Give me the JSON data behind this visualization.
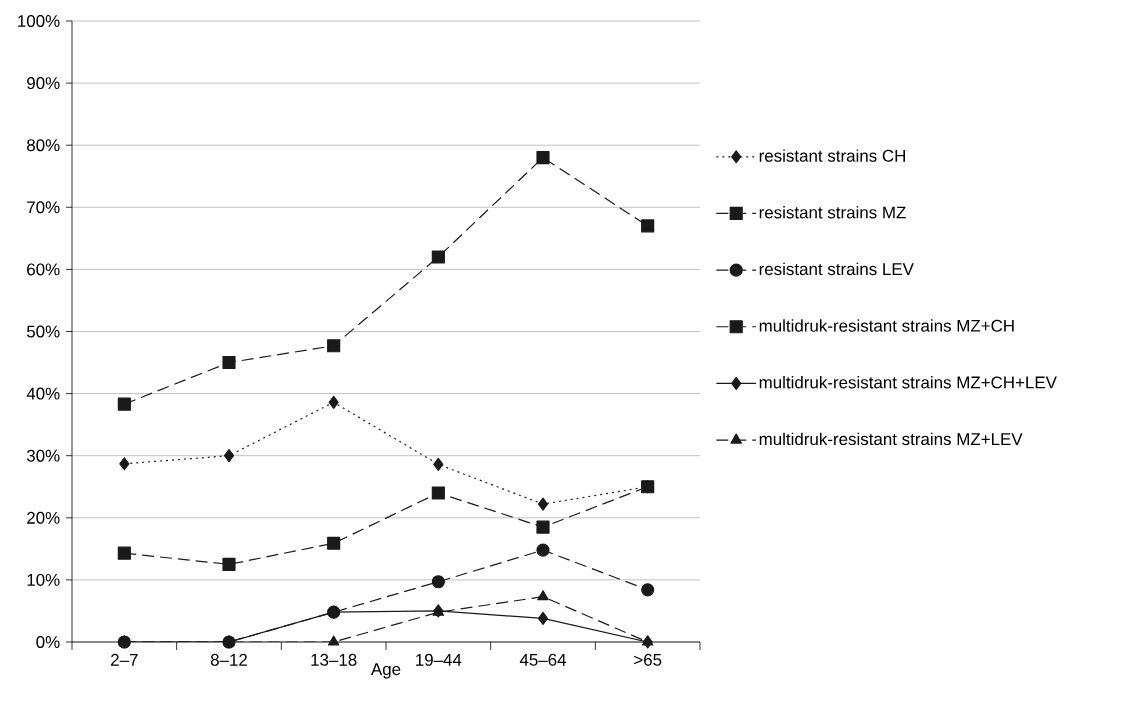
{
  "chart_data": {
    "type": "line",
    "xlabel": "Age",
    "categories": [
      "2–7",
      "8–12",
      "13–18",
      "19–44",
      "45–64",
      ">65"
    ],
    "series": [
      {
        "name": "resistant strains CH",
        "color": "#1a1a1a",
        "marker": "diamond",
        "line_style": "dotted",
        "values": [
          28.7,
          30,
          38.6,
          28.6,
          22.2,
          25
        ]
      },
      {
        "name": "resistant strains MZ",
        "color": "#1a1a1a",
        "marker": "square",
        "line_style": "dashed",
        "values": [
          38.3,
          45,
          47.7,
          62,
          78,
          67
        ]
      },
      {
        "name": "resistant strains LEV",
        "color": "#1a1a1a",
        "marker": "circle",
        "line_style": "dashed",
        "values": [
          0,
          0,
          4.8,
          9.7,
          14.8,
          8.4
        ]
      },
      {
        "name": "multidruk-resistant strains MZ+CH",
        "color": "#1a1a1a",
        "marker": "square",
        "line_style": "dashed",
        "values": [
          14.3,
          12.5,
          15.9,
          24,
          18.5,
          25
        ]
      },
      {
        "name": "multidruk-resistant strains MZ+CH+LEV",
        "color": "#1a1a1a",
        "marker": "diamond",
        "line_style": "solid",
        "values": [
          0,
          0,
          4.8,
          5,
          3.8,
          0
        ]
      },
      {
        "name": "multidruk-resistant strains MZ+LEV",
        "color": "#1a1a1a",
        "marker": "triangle",
        "line_style": "dashed",
        "values": [
          0,
          0,
          0,
          4.8,
          7.3,
          0
        ]
      }
    ],
    "ylim": [
      0,
      100
    ],
    "yticks": [
      {
        "value": 0,
        "label": "0%"
      },
      {
        "value": 10,
        "label": "10%"
      },
      {
        "value": 20,
        "label": "20%"
      },
      {
        "value": 30,
        "label": "30%"
      },
      {
        "value": 40,
        "label": "40%"
      },
      {
        "value": 50,
        "label": "50%"
      },
      {
        "value": 60,
        "label": "60%"
      },
      {
        "value": 70,
        "label": "70%"
      },
      {
        "value": 80,
        "label": "80%"
      },
      {
        "value": 90,
        "label": "90%"
      },
      {
        "value": 100,
        "label": "100%"
      }
    ],
    "grid": "y",
    "legend": "right"
  }
}
